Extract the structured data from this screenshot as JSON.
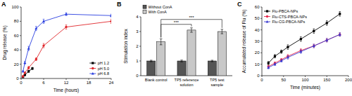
{
  "chart_data": [
    {
      "type": "line",
      "title": "A",
      "x_label": "Time (hours)",
      "y_label": "Drug release (%)",
      "xlim": [
        0,
        24
      ],
      "xticks": [
        0,
        6,
        12,
        18,
        24
      ],
      "ylim": [
        0,
        100
      ],
      "yticks": [
        0,
        20,
        40,
        60,
        80,
        100
      ],
      "legend": "lower right",
      "series": [
        {
          "name": "pH 1.2",
          "color": "#000000",
          "marker": "square",
          "x": [
            0.5,
            1,
            2,
            3
          ],
          "values": [
            2,
            5,
            10,
            14
          ],
          "errors": [
            0.5,
            1,
            1.5,
            1.5
          ]
        },
        {
          "name": "pH 5.0",
          "color": "#e0262a",
          "marker": "circle",
          "x": [
            0.5,
            1,
            2,
            4,
            6,
            12,
            24
          ],
          "values": [
            3,
            8,
            15,
            27,
            46,
            72,
            80
          ],
          "errors": [
            1,
            1,
            2,
            2,
            3,
            3,
            3
          ]
        },
        {
          "name": "pH 6.8",
          "color": "#2a3fe0",
          "marker": "triangle",
          "x": [
            0.5,
            1,
            2,
            4,
            6,
            12,
            24
          ],
          "values": [
            10,
            22,
            42,
            70,
            80,
            90,
            88
          ],
          "errors": [
            1,
            2,
            3,
            3,
            3,
            2,
            2
          ]
        }
      ]
    },
    {
      "type": "bar",
      "title": "B",
      "y_label": "Stimulation index",
      "categories": [
        "Blank control",
        "TP5 reference solution",
        "TP5 test sample"
      ],
      "ylim": [
        0,
        4
      ],
      "yticks": [
        0,
        1,
        2,
        3,
        4
      ],
      "legend": "upper left",
      "series": [
        {
          "name": "Without ConA",
          "color": "#555555",
          "values": [
            1,
            1,
            1
          ],
          "errors": [
            0.05,
            0.06,
            0.05
          ]
        },
        {
          "name": "With ConA",
          "color": "#c8c8c8",
          "values": [
            2.3,
            3.1,
            3.0
          ],
          "errors": [
            0.2,
            0.15,
            0.15
          ]
        }
      ],
      "annotations": [
        {
          "text": "***",
          "between": [
            "Blank control",
            "TP5 reference solution"
          ]
        },
        {
          "text": "***",
          "between": [
            "Blank control",
            "TP5 test sample"
          ]
        }
      ]
    },
    {
      "type": "line",
      "title": "C",
      "x_label": "Time (minutes)",
      "y_label": "Accumulated release of Flu (%)",
      "xlim": [
        0,
        200
      ],
      "xticks": [
        0,
        50,
        100,
        150,
        200
      ],
      "ylim": [
        0,
        60
      ],
      "yticks": [
        0,
        10,
        20,
        30,
        40,
        50,
        60
      ],
      "legend": "upper left",
      "series": [
        {
          "name": "Flu-PBCA-NPs",
          "color": "#000000",
          "marker": "square",
          "x": [
            15,
            30,
            45,
            60,
            90,
            120,
            150,
            180
          ],
          "values": [
            11,
            17,
            21,
            25,
            32,
            39,
            46,
            54
          ],
          "errors": [
            1.5,
            1.5,
            1.5,
            2,
            2,
            2,
            2,
            2
          ]
        },
        {
          "name": "Flu-CTS-PBCA-NPs",
          "color": "#e8264b",
          "marker": "circle",
          "x": [
            15,
            30,
            45,
            60,
            90,
            120,
            150,
            180
          ],
          "values": [
            8,
            11,
            14,
            17,
            22,
            26,
            31,
            36
          ],
          "errors": [
            1,
            1,
            1,
            1.5,
            1.5,
            1.5,
            1.5,
            1.5
          ]
        },
        {
          "name": "Flu-CG-PBCA-NPs",
          "color": "#3a3ad0",
          "marker": "triangle",
          "x": [
            15,
            30,
            45,
            60,
            90,
            120,
            150,
            180
          ],
          "values": [
            7,
            10,
            13,
            16,
            21,
            26,
            31,
            36
          ],
          "errors": [
            1,
            1,
            1,
            1.5,
            1.5,
            1.5,
            1.5,
            1.5
          ]
        }
      ]
    }
  ]
}
